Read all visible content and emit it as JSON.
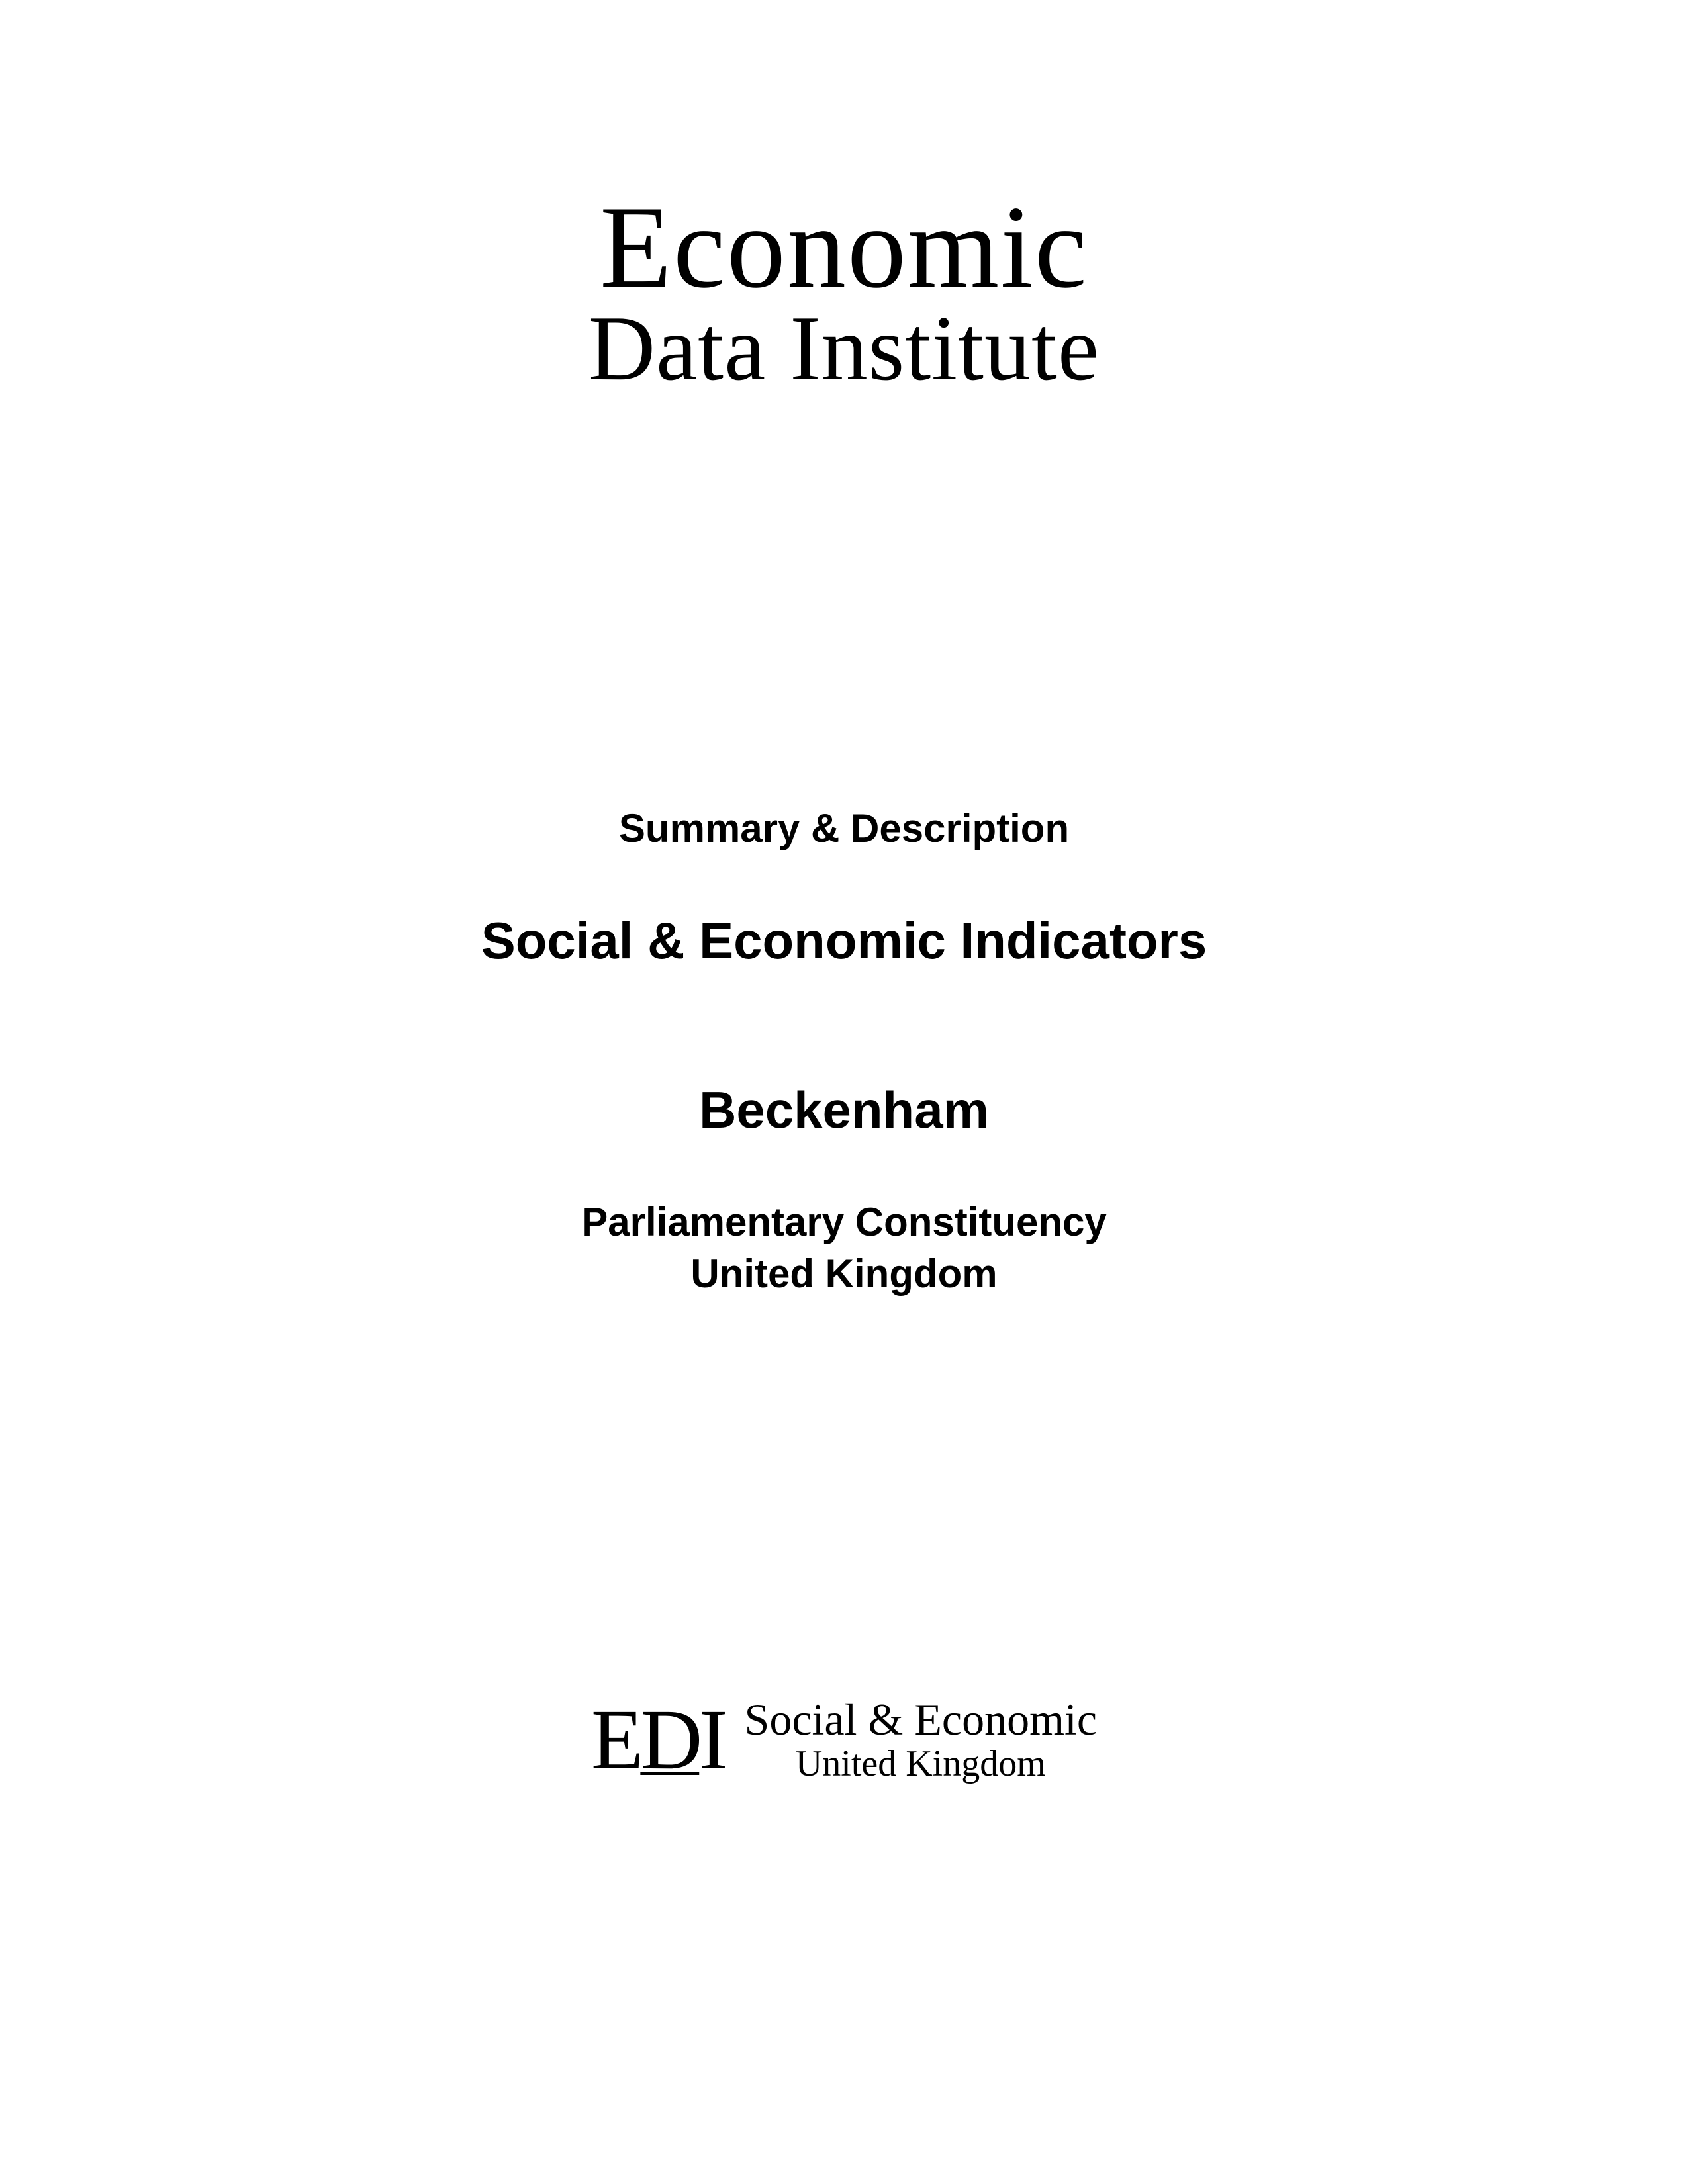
{
  "page": {
    "background_color": "#ffffff",
    "text_color": "#000000"
  },
  "main_logo": {
    "line1": "Economic",
    "line2": "Data Institute",
    "font_family": "Georgia, serif",
    "line1_fontsize": 178,
    "line2_fontsize": 140
  },
  "summary_label": "Summary & Description",
  "main_title": "Social & Economic Indicators",
  "location_name": "Beckenham",
  "subtitle_line1": "Parliamentary Constituency",
  "subtitle_line2": "United Kingdom",
  "footer_logo": {
    "abbreviation_e": "E",
    "abbreviation_d": "D",
    "abbreviation_i": "I",
    "tagline_line1": "Social & Economic",
    "tagline_line2": "United Kingdom",
    "abbr_fontsize": 130,
    "tagline1_fontsize": 68,
    "tagline2_fontsize": 56
  },
  "typography": {
    "serif_font": "Georgia, Times New Roman, serif",
    "sans_font": "Arial, Helvetica, sans-serif",
    "summary_fontsize": 60,
    "title_fontsize": 78,
    "subtitle_fontsize": 60
  }
}
